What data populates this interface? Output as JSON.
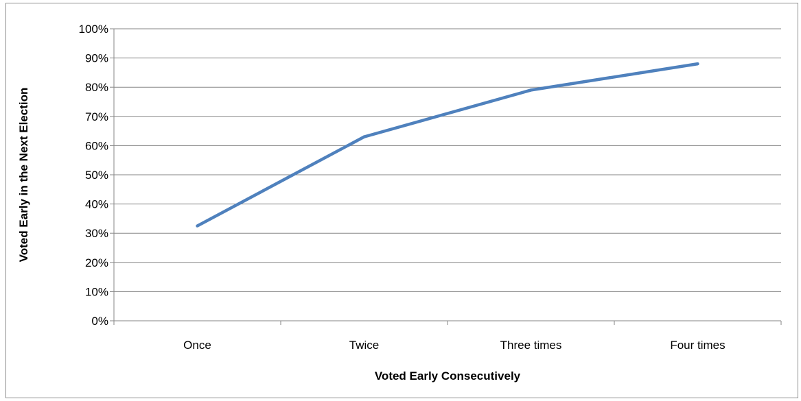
{
  "chart_data": {
    "type": "line",
    "title": "",
    "xlabel": "Voted Early Consecutively",
    "ylabel": "Voted Early in the Next Election",
    "categories": [
      "Once",
      "Twice",
      "Three times",
      "Four times"
    ],
    "series": [
      {
        "values": [
          32.5,
          63,
          79,
          88
        ]
      }
    ],
    "ylim": [
      0,
      100
    ],
    "yticks": [
      "0%",
      "10%",
      "20%",
      "30%",
      "40%",
      "50%",
      "60%",
      "70%",
      "80%",
      "90%",
      "100%"
    ],
    "grid": true,
    "legend": "none",
    "line_color": "#4f81bd",
    "grid_color": "#868686"
  }
}
